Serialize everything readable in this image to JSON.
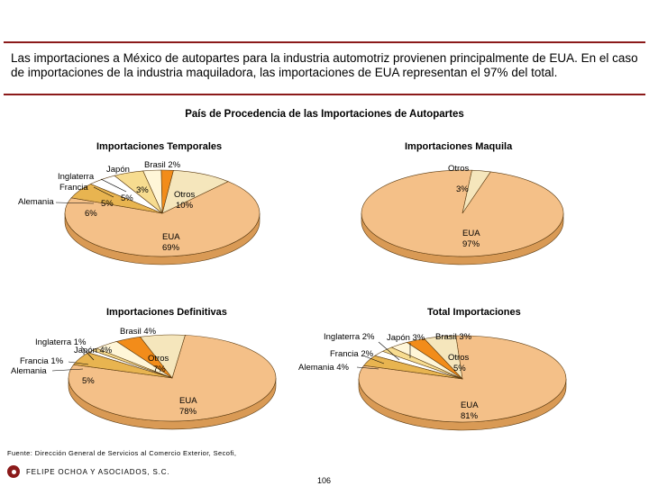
{
  "intro_text": "Las importaciones a México de autopartes para la industria automotriz provienen principalmente de EUA. En el caso de importaciones de la industria maquiladora, las importaciones  de EUA representan el 97% del total.",
  "main_title": "País de Procedencia de las Importaciones de Autopartes",
  "footer": {
    "source": "Fuente: Dirección General de Servicios al Comercio Exterior, Secofi,",
    "firm": "FELIPE OCHOA Y ASOCIADOS, S.C.",
    "page_number": "106"
  },
  "colors": {
    "rule": "#8b1a1a",
    "eua": "#f4c088",
    "otros": "#f5e6bc",
    "brasil": "#f28c1a",
    "japon": "#fff6d8",
    "inglaterra": "#f7dc90",
    "francia": "#ffffff",
    "alemania": "#e8b450",
    "outline": "#5a3a10"
  },
  "chart_data": [
    {
      "type": "pie",
      "title": "Importaciones Temporales",
      "slices": [
        {
          "name": "EUA",
          "value": 69,
          "label": "EUA\n69%"
        },
        {
          "name": "Otros",
          "value": 10,
          "label": "Otros\n10%"
        },
        {
          "name": "Brasil",
          "value": 2,
          "label": "Brasil 2%"
        },
        {
          "name": "Japón",
          "value": 3,
          "label": "Japón"
        },
        {
          "name": "Inglaterra",
          "value": 5,
          "label": "Inglaterra"
        },
        {
          "name": "Francia",
          "value": 5,
          "label": "Francia"
        },
        {
          "name": "Alemania",
          "value": 6,
          "label": "Alemania"
        }
      ],
      "value_labels": [
        "3%",
        "5%",
        "5%",
        "6%"
      ]
    },
    {
      "type": "pie",
      "title": "Importaciones Maquila",
      "slices": [
        {
          "name": "EUA",
          "value": 97,
          "label": "EUA\n97%"
        },
        {
          "name": "Otros",
          "value": 3,
          "label": "Otros"
        }
      ],
      "value_labels": [
        "3%"
      ]
    },
    {
      "type": "pie",
      "title": "Importaciones Definitivas",
      "slices": [
        {
          "name": "EUA",
          "value": 78,
          "label": "EUA\n78%"
        },
        {
          "name": "Otros",
          "value": 7,
          "label": "Otros\n7%"
        },
        {
          "name": "Brasil",
          "value": 4,
          "label": "Brasil 4%"
        },
        {
          "name": "Japón",
          "value": 4,
          "label": "Japón 4%"
        },
        {
          "name": "Inglaterra",
          "value": 1,
          "label": "Inglaterra 1%"
        },
        {
          "name": "Francia",
          "value": 1,
          "label": "Francia 1%"
        },
        {
          "name": "Alemania",
          "value": 5,
          "label": "Alemania"
        }
      ],
      "value_labels": [
        "5%"
      ]
    },
    {
      "type": "pie",
      "title": "Total Importaciones",
      "slices": [
        {
          "name": "EUA",
          "value": 81,
          "label": "EUA\n81%"
        },
        {
          "name": "Otros",
          "value": 5,
          "label": "Otros\n5%"
        },
        {
          "name": "Brasil",
          "value": 3,
          "label": "Brasil 3%"
        },
        {
          "name": "Japón",
          "value": 3,
          "label": "Japón 3%"
        },
        {
          "name": "Inglaterra",
          "value": 2,
          "label": "Inglaterra 2%"
        },
        {
          "name": "Francia",
          "value": 2,
          "label": "Francia 2%"
        },
        {
          "name": "Alemania",
          "value": 4,
          "label": "Alemania 4%"
        }
      ],
      "value_labels": []
    }
  ]
}
